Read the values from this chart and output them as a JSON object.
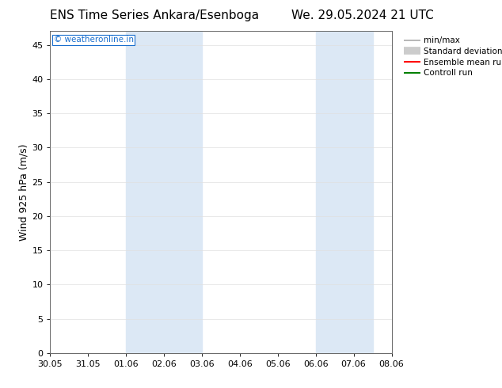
{
  "title_left": "ENS Time Series Ankara/Esenboga",
  "title_right": "We. 29.05.2024 21 UTC",
  "ylabel": "Wind 925 hPa (m/s)",
  "watermark": "© weatheronline.in",
  "watermark_color": "#1a6fce",
  "xlim_start": 0,
  "xlim_end": 9,
  "ylim_min": 0,
  "ylim_max": 47,
  "yticks": [
    0,
    5,
    10,
    15,
    20,
    25,
    30,
    35,
    40,
    45
  ],
  "xtick_labels": [
    "30.05",
    "31.05",
    "01.06",
    "02.06",
    "03.06",
    "04.06",
    "05.06",
    "06.06",
    "07.06",
    "08.06"
  ],
  "shaded_regions": [
    {
      "x_start": 2,
      "x_end": 4,
      "color": "#dce8f5"
    },
    {
      "x_start": 7,
      "x_end": 8.5,
      "color": "#dce8f5"
    }
  ],
  "legend_entries": [
    {
      "label": "min/max",
      "color": "#aaaaaa",
      "lw": 1.2,
      "style": "solid"
    },
    {
      "label": "Standard deviation",
      "color": "#cccccc",
      "lw": 7,
      "style": "solid"
    },
    {
      "label": "Ensemble mean run",
      "color": "#ff0000",
      "lw": 1.5,
      "style": "solid"
    },
    {
      "label": "Controll run",
      "color": "#008000",
      "lw": 1.5,
      "style": "solid"
    }
  ],
  "bg_color": "#ffffff",
  "plot_bg_color": "#ffffff",
  "title_fontsize": 11,
  "axis_fontsize": 9,
  "tick_fontsize": 8
}
